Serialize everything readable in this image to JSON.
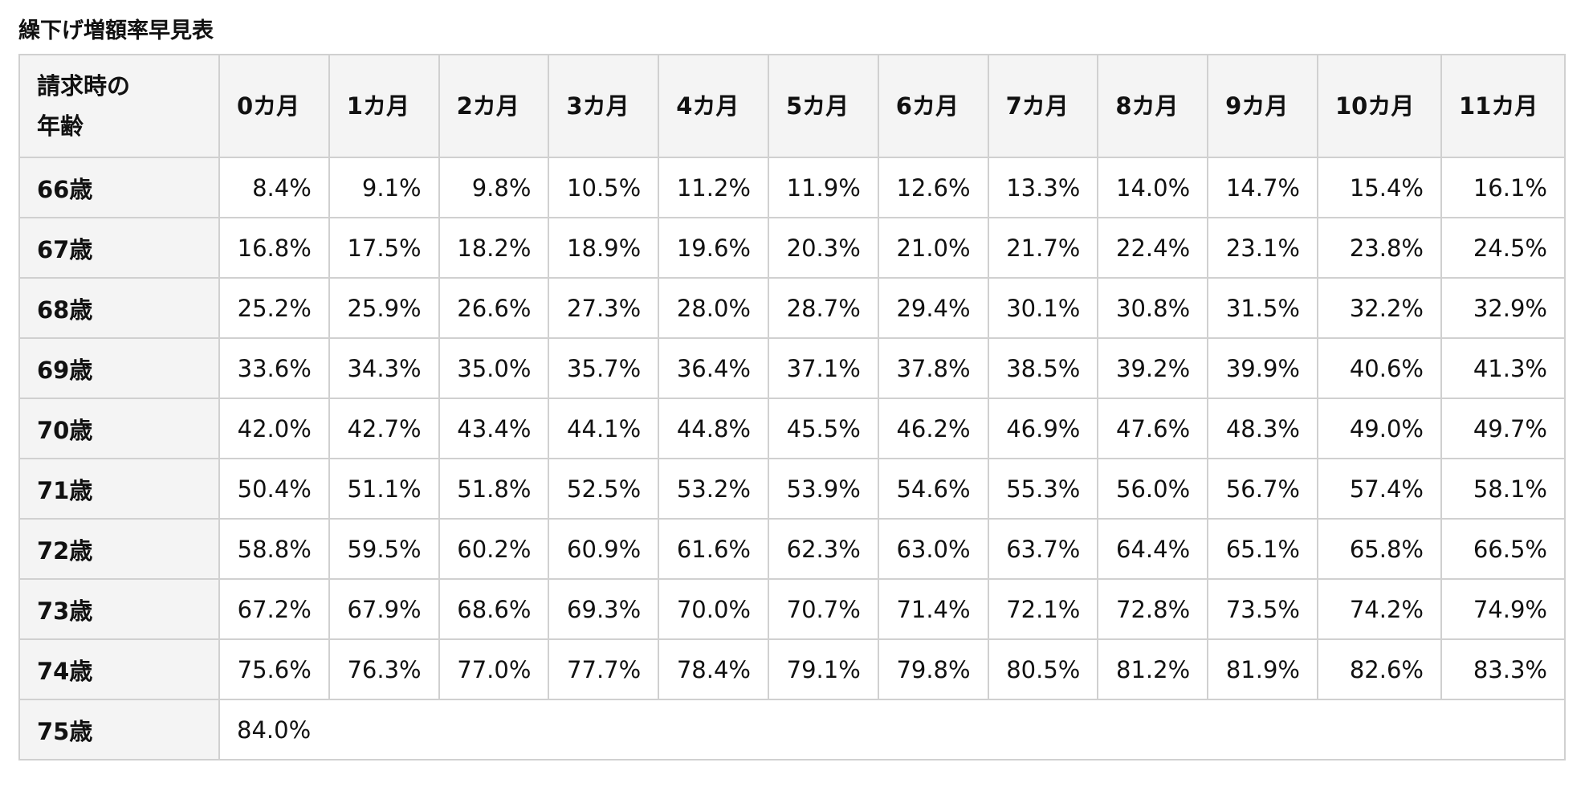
{
  "title": "繰下げ増額率早見表",
  "table": {
    "header": [
      "請求時の\n年齢",
      "0カ月",
      "1カ月",
      "2カ月",
      "3カ月",
      "4カ月",
      "5カ月",
      "6カ月",
      "7カ月",
      "8カ月",
      "9カ月",
      "10カ月",
      "11カ月"
    ],
    "rows": [
      {
        "label": "66歳",
        "cells": [
          "8.4%",
          "9.1%",
          "9.8%",
          "10.5%",
          "11.2%",
          "11.9%",
          "12.6%",
          "13.3%",
          "14.0%",
          "14.7%",
          "15.4%",
          "16.1%"
        ]
      },
      {
        "label": "67歳",
        "cells": [
          "16.8%",
          "17.5%",
          "18.2%",
          "18.9%",
          "19.6%",
          "20.3%",
          "21.0%",
          "21.7%",
          "22.4%",
          "23.1%",
          "23.8%",
          "24.5%"
        ]
      },
      {
        "label": "68歳",
        "cells": [
          "25.2%",
          "25.9%",
          "26.6%",
          "27.3%",
          "28.0%",
          "28.7%",
          "29.4%",
          "30.1%",
          "30.8%",
          "31.5%",
          "32.2%",
          "32.9%"
        ]
      },
      {
        "label": "69歳",
        "cells": [
          "33.6%",
          "34.3%",
          "35.0%",
          "35.7%",
          "36.4%",
          "37.1%",
          "37.8%",
          "38.5%",
          "39.2%",
          "39.9%",
          "40.6%",
          "41.3%"
        ]
      },
      {
        "label": "70歳",
        "cells": [
          "42.0%",
          "42.7%",
          "43.4%",
          "44.1%",
          "44.8%",
          "45.5%",
          "46.2%",
          "46.9%",
          "47.6%",
          "48.3%",
          "49.0%",
          "49.7%"
        ]
      },
      {
        "label": "71歳",
        "cells": [
          "50.4%",
          "51.1%",
          "51.8%",
          "52.5%",
          "53.2%",
          "53.9%",
          "54.6%",
          "55.3%",
          "56.0%",
          "56.7%",
          "57.4%",
          "58.1%"
        ]
      },
      {
        "label": "72歳",
        "cells": [
          "58.8%",
          "59.5%",
          "60.2%",
          "60.9%",
          "61.6%",
          "62.3%",
          "63.0%",
          "63.7%",
          "64.4%",
          "65.1%",
          "65.8%",
          "66.5%"
        ]
      },
      {
        "label": "73歳",
        "cells": [
          "67.2%",
          "67.9%",
          "68.6%",
          "69.3%",
          "70.0%",
          "70.7%",
          "71.4%",
          "72.1%",
          "72.8%",
          "73.5%",
          "74.2%",
          "74.9%"
        ]
      },
      {
        "label": "74歳",
        "cells": [
          "75.6%",
          "76.3%",
          "77.0%",
          "77.7%",
          "78.4%",
          "79.1%",
          "79.8%",
          "80.5%",
          "81.2%",
          "81.9%",
          "82.6%",
          "83.3%"
        ]
      },
      {
        "label": "75歳",
        "cells": [
          "84.0%"
        ]
      }
    ]
  }
}
